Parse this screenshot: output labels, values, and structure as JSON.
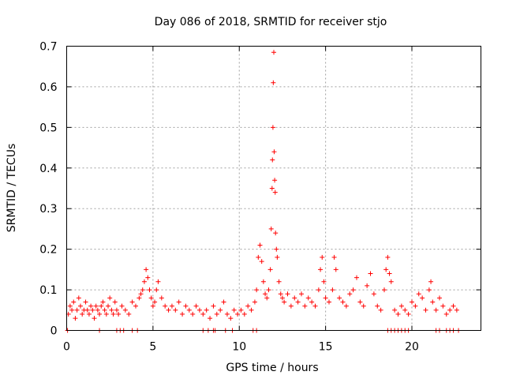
{
  "chart_data": {
    "type": "scatter",
    "title": "Day 086 of 2018, SRMTID for receiver stjo",
    "xlabel": "GPS time / hours",
    "ylabel": "SRMTID / TECUs",
    "xlim": [
      0,
      24
    ],
    "ylim": [
      0,
      0.7
    ],
    "xticks": [
      0,
      5,
      10,
      15,
      20
    ],
    "xtick_labels": [
      "0",
      "5",
      "10",
      "15",
      "20"
    ],
    "yticks": [
      0,
      0.1,
      0.2,
      0.3,
      0.4,
      0.5,
      0.6,
      0.7
    ],
    "ytick_labels": [
      "0",
      "0.1",
      "0.2",
      "0.3",
      "0.4",
      "0.5",
      "0.6",
      "0.7"
    ],
    "grid": true,
    "marker": "+",
    "color": "#ff0000",
    "series": [
      {
        "name": "SRMTID",
        "x": [
          0.1,
          0.2,
          0.3,
          0.4,
          0.5,
          0.6,
          0.7,
          0.8,
          0.9,
          1.0,
          1.1,
          1.2,
          1.3,
          1.4,
          1.5,
          1.6,
          1.7,
          1.8,
          1.9,
          2.0,
          2.1,
          2.2,
          2.3,
          2.4,
          2.5,
          2.6,
          2.7,
          2.8,
          2.9,
          3.0,
          3.2,
          3.4,
          3.6,
          3.8,
          4.0,
          4.2,
          4.3,
          4.4,
          4.5,
          4.6,
          4.7,
          4.8,
          4.9,
          5.0,
          5.1,
          5.2,
          5.3,
          5.5,
          5.7,
          5.9,
          6.1,
          6.3,
          6.5,
          6.7,
          6.9,
          7.1,
          7.3,
          7.5,
          7.7,
          7.9,
          8.1,
          8.3,
          8.5,
          8.7,
          8.9,
          9.1,
          9.3,
          9.5,
          9.7,
          9.9,
          10.1,
          10.3,
          10.5,
          10.7,
          10.9,
          11.0,
          11.1,
          11.2,
          11.3,
          11.4,
          11.5,
          11.6,
          11.7,
          11.8,
          11.85,
          11.9,
          11.92,
          11.95,
          11.97,
          12.0,
          12.02,
          12.05,
          12.08,
          12.1,
          12.15,
          12.2,
          12.3,
          12.4,
          12.5,
          12.6,
          12.8,
          13.0,
          13.2,
          13.4,
          13.6,
          13.8,
          14.0,
          14.2,
          14.4,
          14.6,
          14.7,
          14.8,
          14.9,
          15.0,
          15.2,
          15.4,
          15.5,
          15.6,
          15.8,
          16.0,
          16.2,
          16.4,
          16.6,
          16.8,
          17.0,
          17.2,
          17.4,
          17.6,
          17.8,
          18.0,
          18.2,
          18.4,
          18.5,
          18.6,
          18.7,
          18.8,
          19.0,
          19.2,
          19.4,
          19.6,
          19.8,
          20.0,
          20.2,
          20.4,
          20.6,
          20.8,
          21.0,
          21.1,
          21.2,
          21.4,
          21.6,
          21.8,
          22.0,
          22.2,
          22.4,
          22.6,
          0.05,
          1.9,
          2.9,
          3.1,
          3.3,
          3.8,
          4.1,
          7.9,
          8.2,
          8.5,
          8.6,
          9.2,
          9.6,
          10.8,
          11.0,
          18.6,
          18.8,
          19.0,
          19.2,
          19.4,
          19.6,
          19.8,
          21.4,
          21.6,
          22.0,
          22.2,
          22.4,
          22.7
        ],
        "y": [
          0.04,
          0.06,
          0.05,
          0.07,
          0.03,
          0.05,
          0.08,
          0.06,
          0.04,
          0.05,
          0.07,
          0.05,
          0.04,
          0.06,
          0.05,
          0.03,
          0.06,
          0.05,
          0.04,
          0.06,
          0.07,
          0.05,
          0.04,
          0.06,
          0.08,
          0.05,
          0.04,
          0.07,
          0.05,
          0.04,
          0.06,
          0.05,
          0.04,
          0.07,
          0.06,
          0.08,
          0.09,
          0.1,
          0.12,
          0.15,
          0.13,
          0.1,
          0.08,
          0.06,
          0.07,
          0.1,
          0.12,
          0.08,
          0.06,
          0.05,
          0.06,
          0.05,
          0.07,
          0.04,
          0.06,
          0.05,
          0.04,
          0.06,
          0.05,
          0.04,
          0.05,
          0.03,
          0.06,
          0.04,
          0.05,
          0.07,
          0.04,
          0.03,
          0.05,
          0.04,
          0.05,
          0.04,
          0.06,
          0.05,
          0.07,
          0.1,
          0.18,
          0.21,
          0.17,
          0.12,
          0.09,
          0.08,
          0.1,
          0.15,
          0.25,
          0.35,
          0.42,
          0.5,
          0.61,
          0.685,
          0.44,
          0.37,
          0.34,
          0.24,
          0.2,
          0.18,
          0.12,
          0.09,
          0.08,
          0.07,
          0.09,
          0.06,
          0.08,
          0.07,
          0.09,
          0.06,
          0.08,
          0.07,
          0.06,
          0.1,
          0.15,
          0.18,
          0.12,
          0.08,
          0.07,
          0.1,
          0.18,
          0.15,
          0.08,
          0.07,
          0.06,
          0.09,
          0.1,
          0.13,
          0.07,
          0.06,
          0.11,
          0.14,
          0.09,
          0.06,
          0.05,
          0.1,
          0.15,
          0.18,
          0.14,
          0.12,
          0.05,
          0.04,
          0.06,
          0.05,
          0.04,
          0.07,
          0.06,
          0.09,
          0.08,
          0.05,
          0.1,
          0.12,
          0.07,
          0.05,
          0.08,
          0.06,
          0.04,
          0.05,
          0.06,
          0.05,
          0.0,
          0.0,
          0.0,
          0.0,
          0.0,
          0.0,
          0.0,
          0.0,
          0.0,
          0.0,
          0.0,
          0.0,
          0.0,
          0.0,
          0.0,
          0.0,
          0.0,
          0.0,
          0.0,
          0.0,
          0.0,
          0.0,
          0.0,
          0.0,
          0.0,
          0.0,
          0.0,
          0.0
        ]
      }
    ]
  }
}
